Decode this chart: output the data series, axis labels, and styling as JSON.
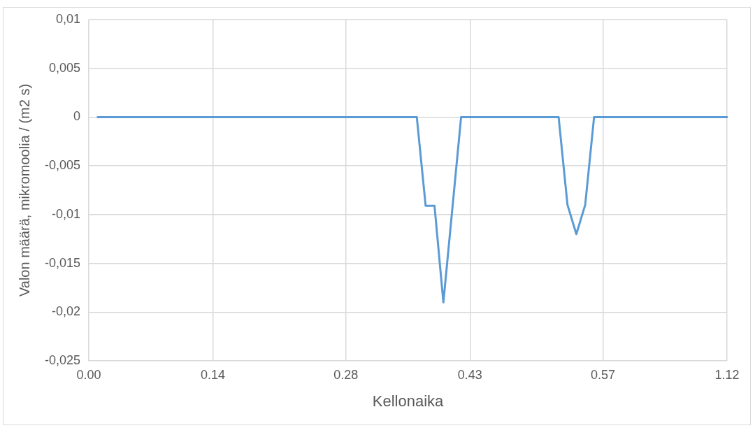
{
  "chart_data": {
    "type": "line",
    "xlabel": "Kellonaika",
    "ylabel": "Valon määrä, mikromoolia / (m2 s)",
    "categories": [
      "0.00",
      null,
      null,
      null,
      null,
      null,
      null,
      null,
      null,
      null,
      null,
      null,
      null,
      null,
      "0.14",
      null,
      null,
      null,
      null,
      null,
      null,
      null,
      null,
      null,
      null,
      null,
      null,
      null,
      null,
      "0.28",
      null,
      null,
      null,
      null,
      null,
      null,
      null,
      null,
      null,
      null,
      null,
      null,
      null,
      "0.43",
      null,
      null,
      null,
      null,
      null,
      null,
      null,
      null,
      null,
      null,
      null,
      null,
      null,
      null,
      "0.57",
      null,
      null,
      null,
      null,
      null,
      null,
      null,
      null,
      null,
      null,
      null,
      null,
      null,
      "1.12"
    ],
    "series": [
      {
        "color": "#5b9bd5",
        "values": [
          null,
          0,
          0,
          0,
          0,
          0,
          0,
          0,
          0,
          0,
          0,
          0,
          0,
          0,
          0,
          0,
          0,
          0,
          0,
          0,
          0,
          0,
          0,
          0,
          0,
          0,
          0,
          0,
          0,
          0,
          0,
          0,
          0,
          0,
          0,
          0,
          0,
          0,
          -0.0091,
          -0.0091,
          -0.019,
          -0.0095,
          0,
          0,
          0,
          0,
          0,
          0,
          0,
          0,
          0,
          0,
          0,
          0,
          -0.009,
          -0.012,
          -0.009,
          0,
          0,
          0,
          0,
          0,
          0,
          0,
          0,
          0,
          0,
          0,
          0,
          0,
          0,
          0,
          0
        ]
      }
    ],
    "ylim": [
      -0.025,
      0.01
    ],
    "yticks": [
      {
        "value": -0.025,
        "label": "-0,025"
      },
      {
        "value": -0.02,
        "label": "-0,02"
      },
      {
        "value": -0.015,
        "label": "-0,015"
      },
      {
        "value": -0.01,
        "label": "-0,01"
      },
      {
        "value": -0.005,
        "label": "-0,005"
      },
      {
        "value": 0,
        "label": "0"
      },
      {
        "value": 0.005,
        "label": "0,005"
      },
      {
        "value": 0.01,
        "label": "0,01"
      }
    ],
    "grid": true,
    "legend": false,
    "marker": "none",
    "line_style": "solid"
  }
}
